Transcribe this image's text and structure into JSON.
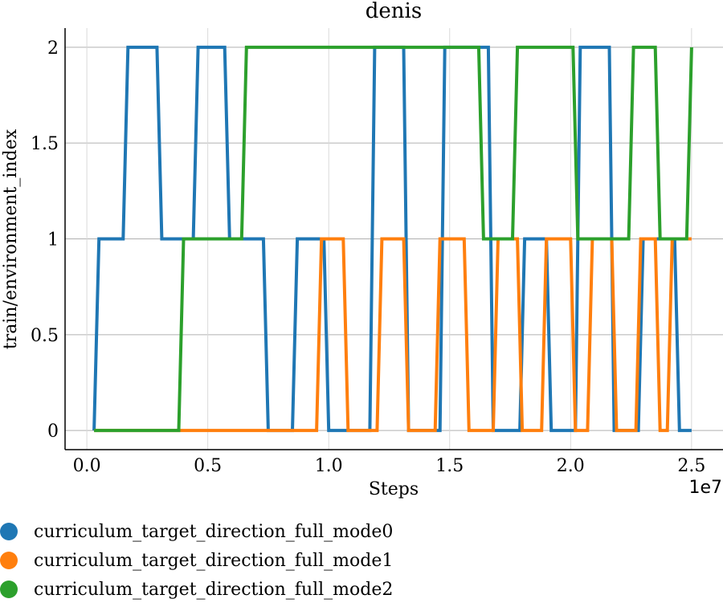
{
  "chart_data": {
    "type": "line",
    "title": "denis",
    "xlabel": "Steps",
    "ylabel": "train/environment_index",
    "x_multiplier_label": "1e7",
    "xlim": [
      -0.09,
      2.63
    ],
    "ylim": [
      -0.1,
      2.1
    ],
    "x_ticks": [
      0,
      0.5,
      1,
      1.5,
      2,
      2.5
    ],
    "x_tick_labels": [
      "0.0",
      "0.5",
      "1.0",
      "1.5",
      "2.0",
      "2.5"
    ],
    "y_ticks": [
      0,
      0.5,
      1,
      1.5,
      2
    ],
    "y_tick_labels": [
      "0",
      "0.5",
      "1",
      "1.5",
      "2"
    ],
    "grid": true,
    "legend_position": "bottom",
    "series": [
      {
        "name": "curriculum_target_direction_full_mode0",
        "color": "#1f77b4",
        "x": [
          0.03,
          0.05,
          0.15,
          0.17,
          0.29,
          0.31,
          0.44,
          0.46,
          0.57,
          0.59,
          0.73,
          0.75,
          0.85,
          0.87,
          0.98,
          1.0,
          1.17,
          1.19,
          1.31,
          1.33,
          1.46,
          1.48,
          1.66,
          1.68,
          1.79,
          1.81,
          1.9,
          1.92,
          2.02,
          2.04,
          2.16,
          2.18,
          2.28,
          2.3,
          2.43,
          2.45,
          2.5
        ],
        "values": [
          0,
          1,
          1,
          2,
          2,
          1,
          1,
          2,
          2,
          1,
          1,
          0,
          0,
          1,
          1,
          0,
          0,
          2,
          2,
          0,
          0,
          2,
          2,
          0,
          0,
          1,
          1,
          0,
          0,
          2,
          2,
          0,
          0,
          1,
          1,
          0,
          0
        ]
      },
      {
        "name": "curriculum_target_direction_full_mode1",
        "color": "#ff7f0e",
        "x": [
          0.03,
          0.95,
          0.97,
          1.06,
          1.08,
          1.2,
          1.22,
          1.31,
          1.33,
          1.44,
          1.46,
          1.56,
          1.58,
          1.68,
          1.7,
          1.78,
          1.8,
          1.88,
          1.9,
          2.0,
          2.02,
          2.07,
          2.09,
          2.17,
          2.19,
          2.27,
          2.29,
          2.35,
          2.37,
          2.4,
          2.42,
          2.48,
          2.5
        ],
        "values": [
          0,
          0,
          1,
          1,
          0,
          0,
          1,
          1,
          0,
          0,
          1,
          1,
          0,
          0,
          1,
          1,
          0,
          0,
          1,
          1,
          0,
          0,
          1,
          1,
          0,
          0,
          1,
          1,
          0,
          0,
          1,
          1,
          1
        ]
      },
      {
        "name": "curriculum_target_direction_full_mode2",
        "color": "#2ca02c",
        "x": [
          0.03,
          0.38,
          0.4,
          0.64,
          0.66,
          1.62,
          1.64,
          1.76,
          1.78,
          2.01,
          2.03,
          2.24,
          2.26,
          2.35,
          2.37,
          2.48,
          2.5
        ],
        "values": [
          0,
          0,
          1,
          1,
          2,
          2,
          1,
          1,
          2,
          2,
          1,
          1,
          2,
          2,
          1,
          1,
          2
        ]
      }
    ]
  }
}
